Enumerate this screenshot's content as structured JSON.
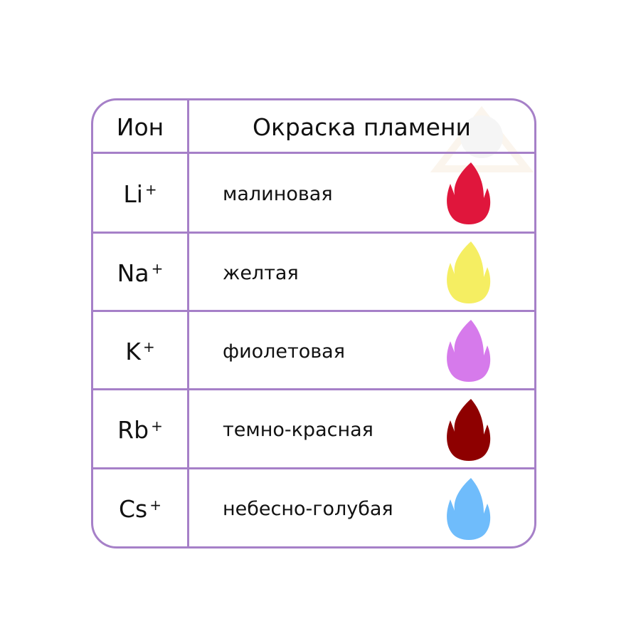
{
  "header": {
    "ion": "Ион",
    "color": "Окраска пламени"
  },
  "rows": [
    {
      "ion": "Li",
      "charge": "+",
      "color_name": "малиновая",
      "flame_color": "#e0163c"
    },
    {
      "ion": "Na",
      "charge": "+",
      "color_name": "желтая",
      "flame_color": "#f5ee62"
    },
    {
      "ion": "K",
      "charge": "+",
      "color_name": "фиолетовая",
      "flame_color": "#d67aeb"
    },
    {
      "ion": "Rb",
      "charge": "+",
      "color_name": "темно-красная",
      "flame_color": "#8e0000"
    },
    {
      "ion": "Cs",
      "charge": "+",
      "color_name": "небесно-голубая",
      "flame_color": "#6fbcfb"
    }
  ],
  "accent": "#a680c8"
}
